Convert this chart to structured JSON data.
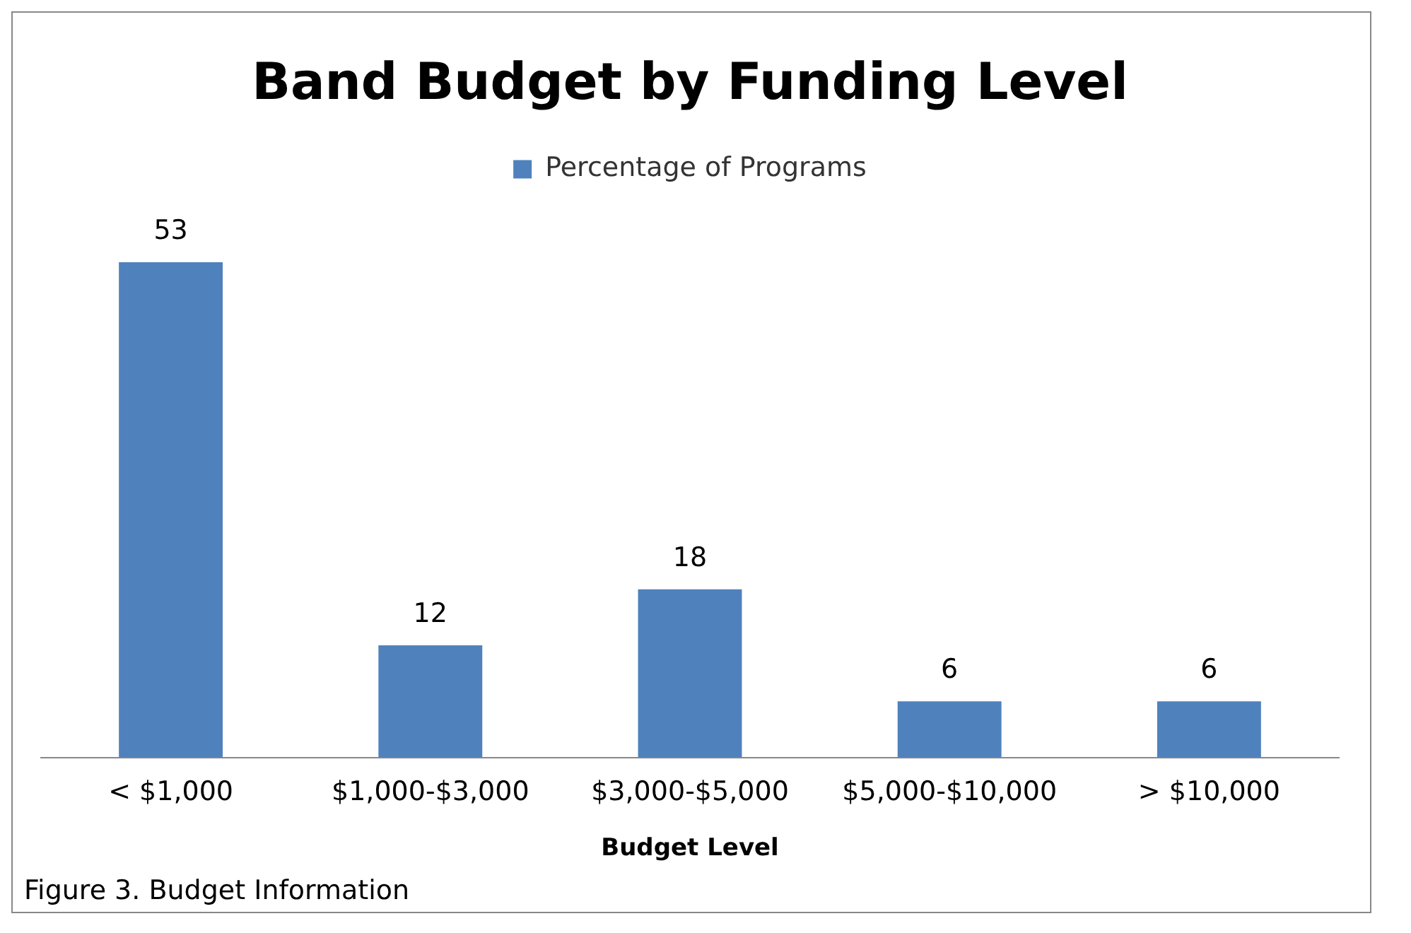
{
  "chart_data": {
    "type": "bar",
    "title": "Band Budget by Funding Level",
    "xlabel": "Budget Level",
    "categories": [
      "< $1,000",
      "$1,000-$3,000",
      "$3,000-$5,000",
      "$5,000-$10,000",
      "> $10,000"
    ],
    "series": [
      {
        "name": "Percentage of Programs",
        "color": "#4f81bd",
        "values": [
          53,
          12,
          18,
          6,
          6
        ]
      }
    ],
    "data_labels": true,
    "legend": "top",
    "grid": false,
    "tick_labels": "x",
    "annotations": [
      "Figure 3. Budget Information"
    ]
  }
}
